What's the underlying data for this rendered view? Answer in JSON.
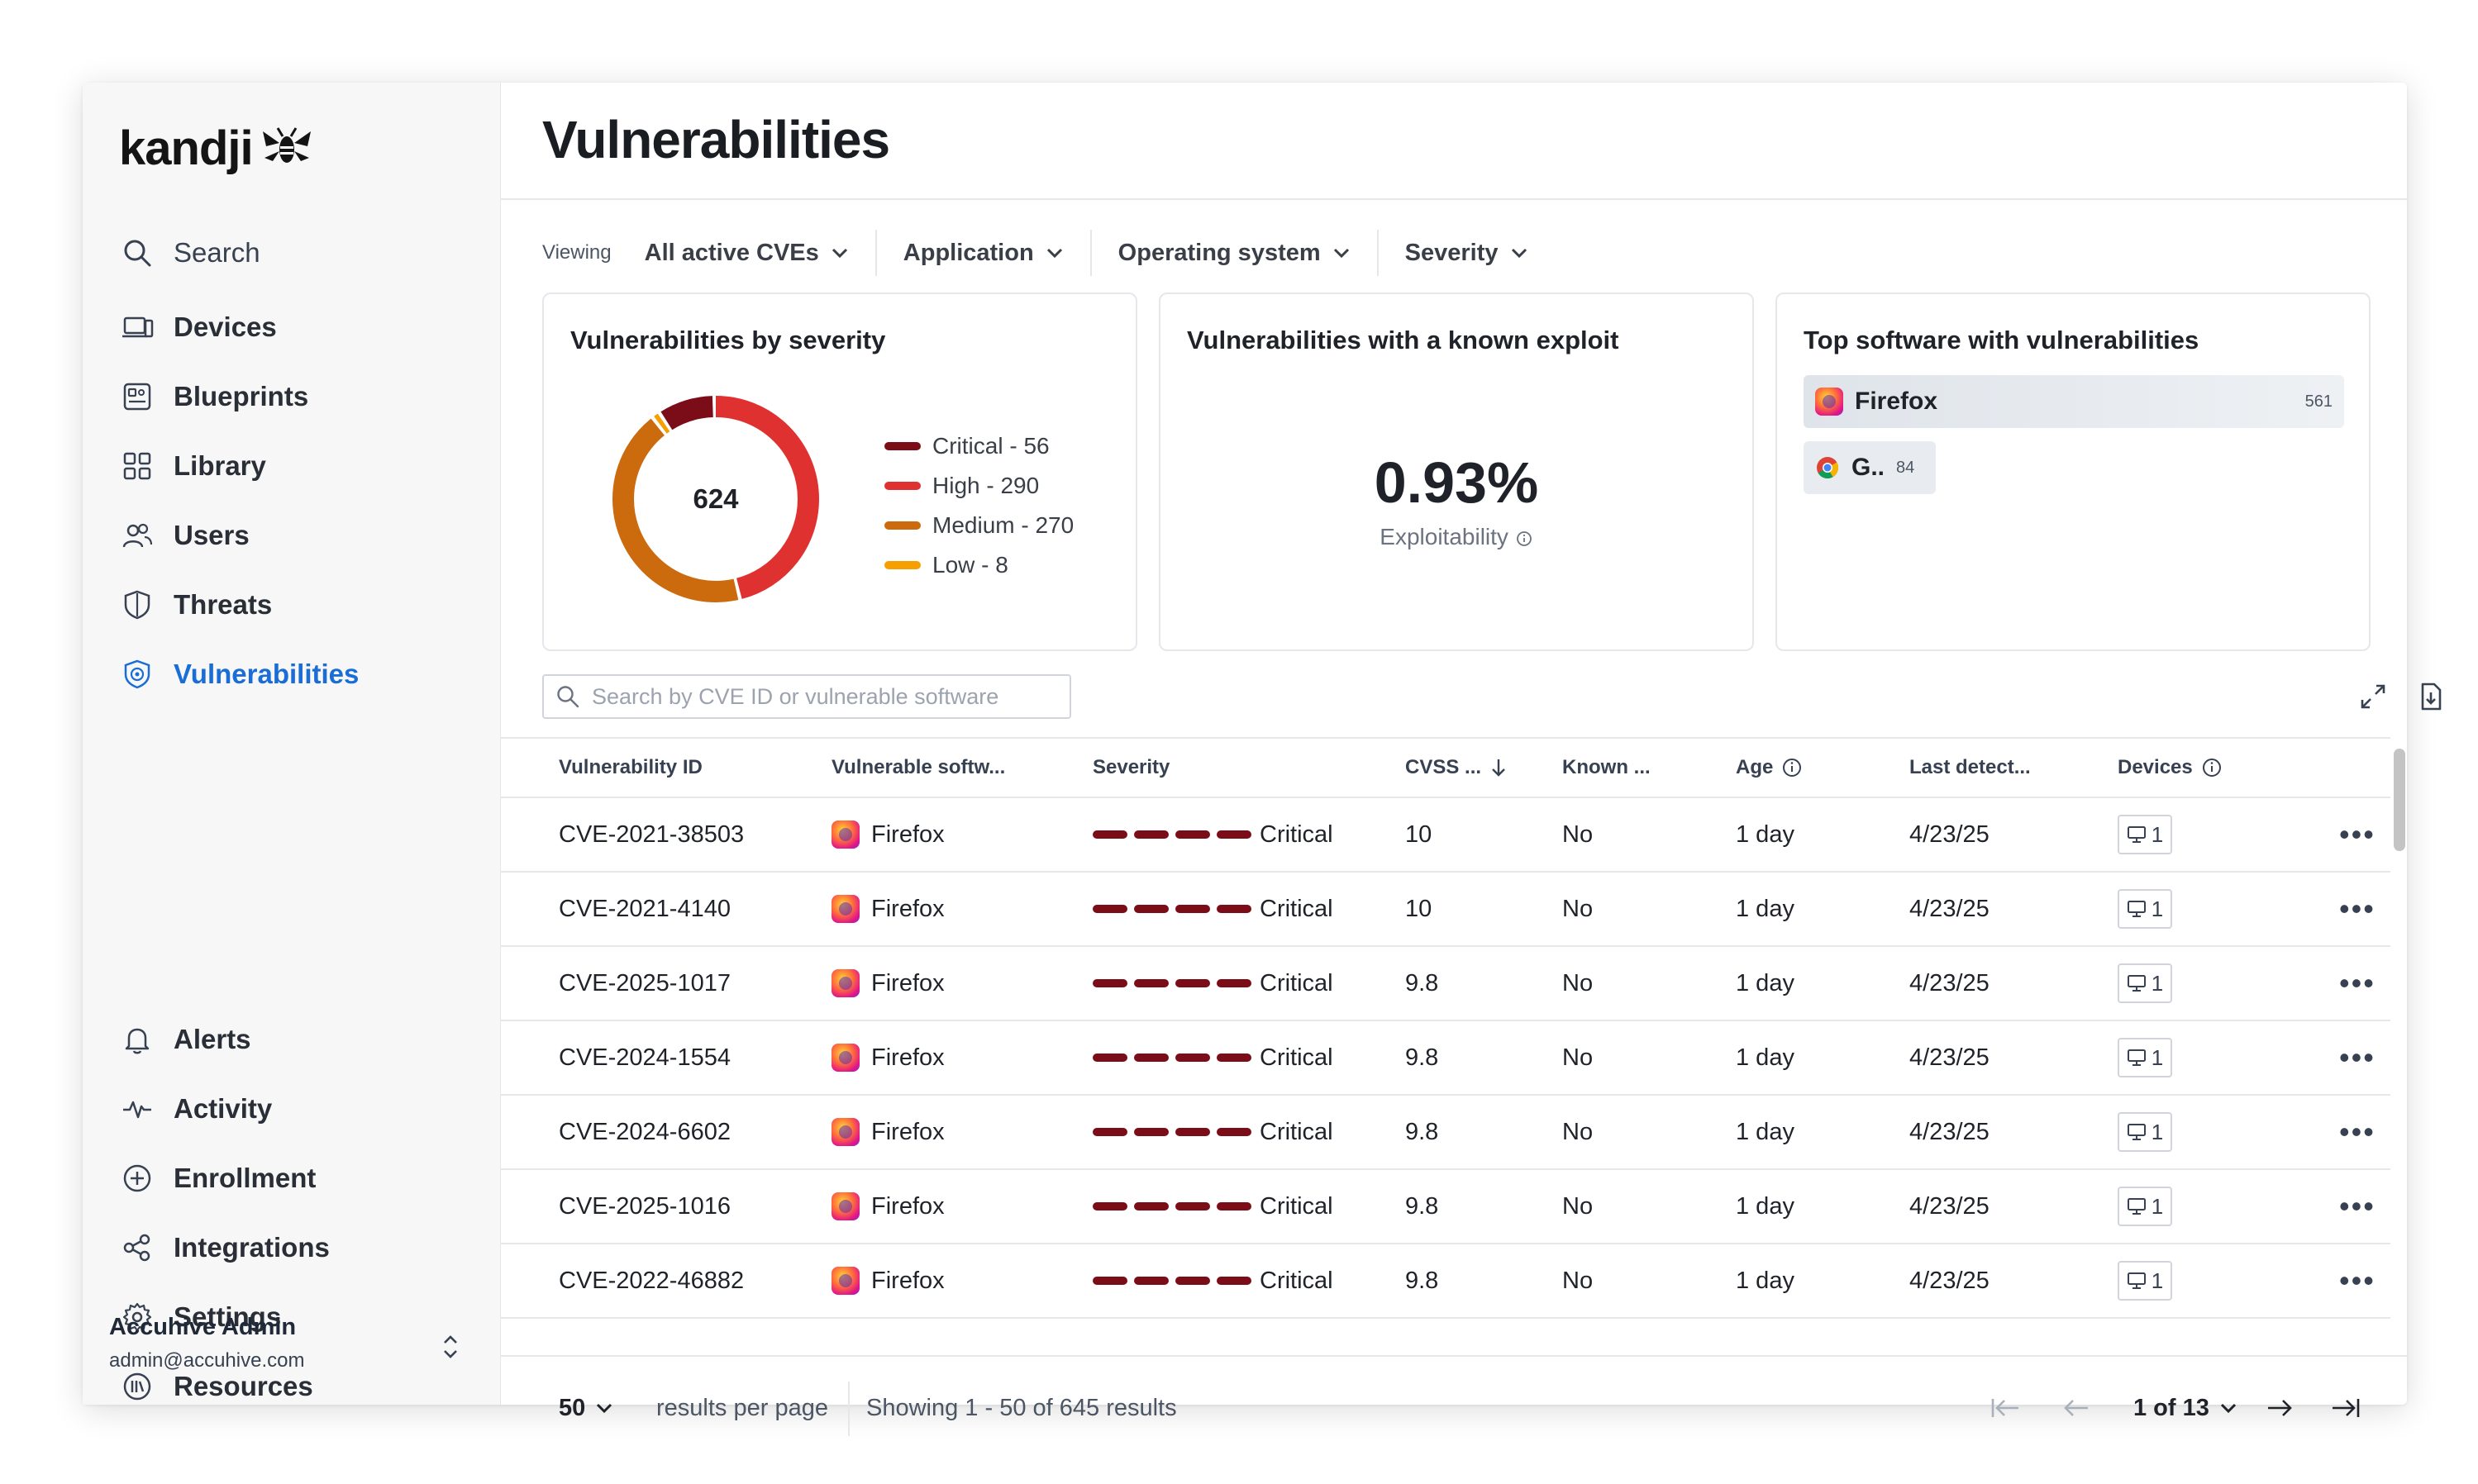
{
  "brand": {
    "logo_text": "kandji"
  },
  "sidebar": {
    "search_label": "Search",
    "items": [
      {
        "label": "Devices",
        "icon": "laptop-icon"
      },
      {
        "label": "Blueprints",
        "icon": "blueprint-icon"
      },
      {
        "label": "Library",
        "icon": "grid-icon"
      },
      {
        "label": "Users",
        "icon": "users-icon"
      },
      {
        "label": "Threats",
        "icon": "shield-icon"
      },
      {
        "label": "Vulnerabilities",
        "icon": "shield-bug-icon",
        "active": true
      }
    ],
    "bottom_items": [
      {
        "label": "Alerts",
        "icon": "bell-icon"
      },
      {
        "label": "Activity",
        "icon": "pulse-icon"
      },
      {
        "label": "Enrollment",
        "icon": "plus-circle-icon"
      },
      {
        "label": "Integrations",
        "icon": "integrations-icon"
      },
      {
        "label": "Settings",
        "icon": "gear-icon"
      },
      {
        "label": "Resources",
        "icon": "resources-icon"
      }
    ],
    "user": {
      "name": "Accuhive Admin",
      "email": "admin@accuhive.com"
    }
  },
  "page": {
    "title": "Vulnerabilities"
  },
  "filters": {
    "viewing_label": "Viewing",
    "items": [
      "All active CVEs",
      "Application",
      "Operating system",
      "Severity"
    ]
  },
  "cards": {
    "severity": {
      "title": "Vulnerabilities by severity",
      "total": "624",
      "legend": [
        {
          "label": "Critical - 56",
          "value": 56,
          "color": "#7b0d18"
        },
        {
          "label": "High - 290",
          "value": 290,
          "color": "#e03131"
        },
        {
          "label": "Medium - 270",
          "value": 270,
          "color": "#cc6a0e"
        },
        {
          "label": "Low - 8",
          "value": 8,
          "color": "#f59f00"
        }
      ]
    },
    "exploit": {
      "title": "Vulnerabilities with a known exploit",
      "value": "0.93%",
      "label": "Exploitability"
    },
    "top_software": {
      "title": "Top software with vulnerabilities",
      "items": [
        {
          "name": "Firefox",
          "count": "561",
          "icon": "firefox-icon"
        },
        {
          "name": "G..",
          "count": "84",
          "icon": "chrome-icon"
        }
      ]
    }
  },
  "search": {
    "placeholder": "Search by CVE ID or vulnerable software"
  },
  "table": {
    "columns": [
      "Vulnerability ID",
      "Vulnerable softw...",
      "Severity",
      "CVSS ...",
      "Known ...",
      "Age",
      "Last detect...",
      "Devices"
    ],
    "rows": [
      {
        "id": "CVE-2021-38503",
        "software": "Firefox",
        "severity": "Critical",
        "cvss": "10",
        "known": "No",
        "age": "1 day",
        "last": "4/23/25",
        "devices": "1"
      },
      {
        "id": "CVE-2021-4140",
        "software": "Firefox",
        "severity": "Critical",
        "cvss": "10",
        "known": "No",
        "age": "1 day",
        "last": "4/23/25",
        "devices": "1"
      },
      {
        "id": "CVE-2025-1017",
        "software": "Firefox",
        "severity": "Critical",
        "cvss": "9.8",
        "known": "No",
        "age": "1 day",
        "last": "4/23/25",
        "devices": "1"
      },
      {
        "id": "CVE-2024-1554",
        "software": "Firefox",
        "severity": "Critical",
        "cvss": "9.8",
        "known": "No",
        "age": "1 day",
        "last": "4/23/25",
        "devices": "1"
      },
      {
        "id": "CVE-2024-6602",
        "software": "Firefox",
        "severity": "Critical",
        "cvss": "9.8",
        "known": "No",
        "age": "1 day",
        "last": "4/23/25",
        "devices": "1"
      },
      {
        "id": "CVE-2025-1016",
        "software": "Firefox",
        "severity": "Critical",
        "cvss": "9.8",
        "known": "No",
        "age": "1 day",
        "last": "4/23/25",
        "devices": "1"
      },
      {
        "id": "CVE-2022-46882",
        "software": "Firefox",
        "severity": "Critical",
        "cvss": "9.8",
        "known": "No",
        "age": "1 day",
        "last": "4/23/25",
        "devices": "1"
      }
    ]
  },
  "footer": {
    "per_page": "50",
    "per_page_label": "results per page",
    "showing": "Showing 1 - 50 of 645 results",
    "page": "1 of 13"
  }
}
